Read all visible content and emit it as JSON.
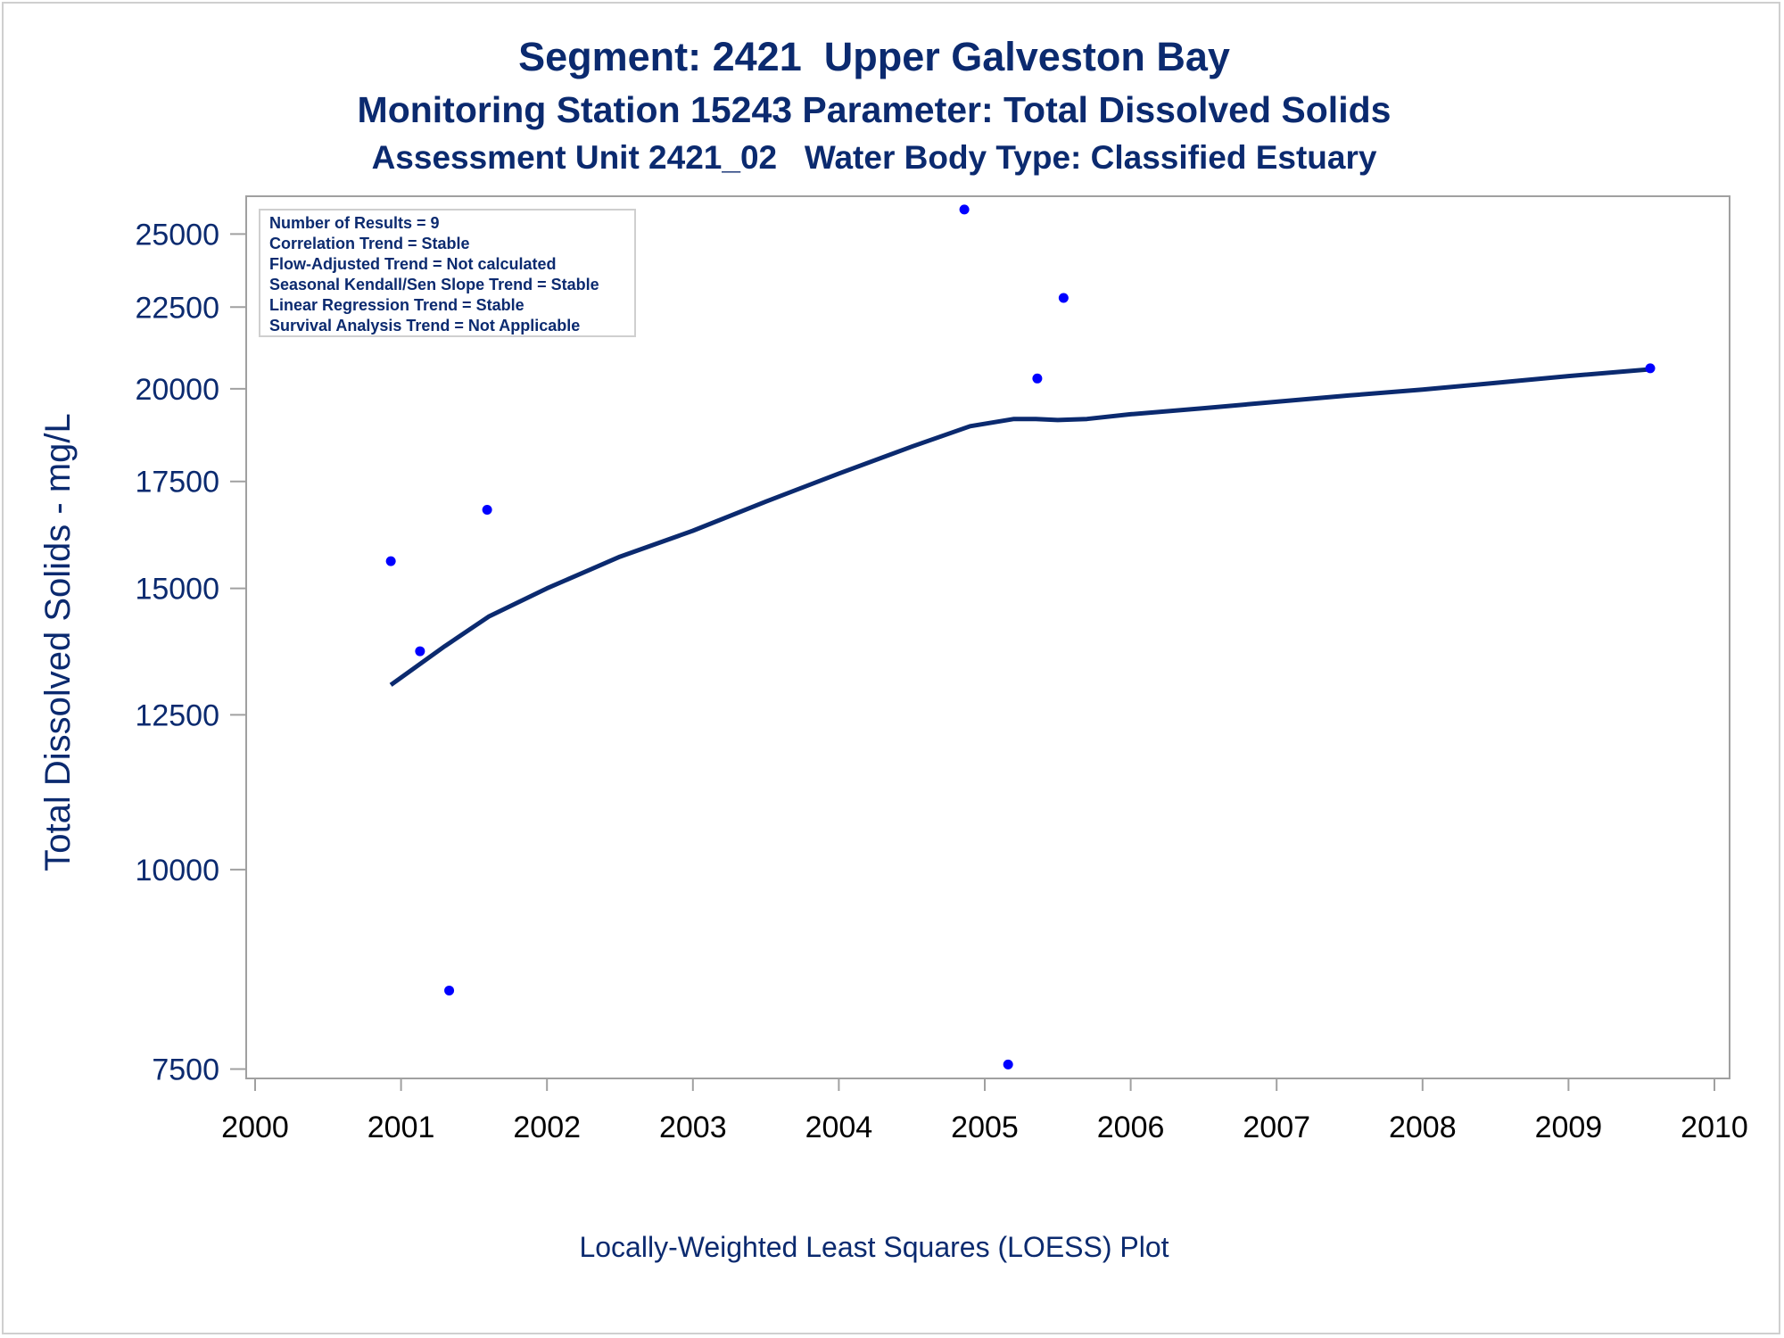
{
  "chart_data": {
    "type": "scatter",
    "title": "Segment: 2421  Upper Galveston Bay",
    "subtitle": "Monitoring Station 15243 Parameter: Total Dissolved Solids",
    "subtitle2": "Assessment Unit 2421_02   Water Body Type: Classified Estuary",
    "xlabel": "",
    "ylabel": "Total Dissolved Solids - mg/L",
    "footnote": "Locally-Weighted Least Squares (LOESS) Plot",
    "y_scale": "log",
    "xlim": [
      2000,
      2010
    ],
    "ylim": [
      7400,
      26400
    ],
    "x_ticks": [
      "2000",
      "2001",
      "2002",
      "2003",
      "2004",
      "2005",
      "2006",
      "2007",
      "2008",
      "2009",
      "2010"
    ],
    "y_ticks": [
      "7500",
      "10000",
      "12500",
      "15000",
      "17500",
      "20000",
      "22500",
      "25000"
    ],
    "legend_placement": "top-left",
    "legend": [
      "Number of Results = 9",
      "Correlation Trend = Stable",
      "Flow-Adjusted Trend = Not calculated",
      "Seasonal Kendall/Sen Slope Trend = Stable",
      "Linear Regression Trend = Stable",
      "Survival Analysis Trend = Not Applicable"
    ],
    "points": {
      "x": [
        2000.93,
        2001.13,
        2001.33,
        2001.59,
        2004.86,
        2005.16,
        2005.36,
        2005.54,
        2009.56
      ],
      "y": [
        15600,
        13700,
        8400,
        16800,
        25900,
        7550,
        20300,
        22800,
        20600
      ],
      "color": "#0000ff"
    },
    "loess": {
      "x": [
        2000.93,
        2001.3,
        2001.6,
        2002.0,
        2002.5,
        2003.0,
        2003.5,
        2004.0,
        2004.5,
        2004.9,
        2005.2,
        2005.35,
        2005.5,
        2005.7,
        2006.0,
        2006.5,
        2007.0,
        2007.5,
        2008.0,
        2008.5,
        2009.0,
        2009.56
      ],
      "y": [
        13050,
        13800,
        14400,
        15000,
        15700,
        16300,
        17000,
        17700,
        18400,
        18950,
        19150,
        19150,
        19120,
        19150,
        19280,
        19450,
        19630,
        19810,
        19980,
        20170,
        20370,
        20570
      ],
      "color": "#0b2a6f"
    }
  }
}
